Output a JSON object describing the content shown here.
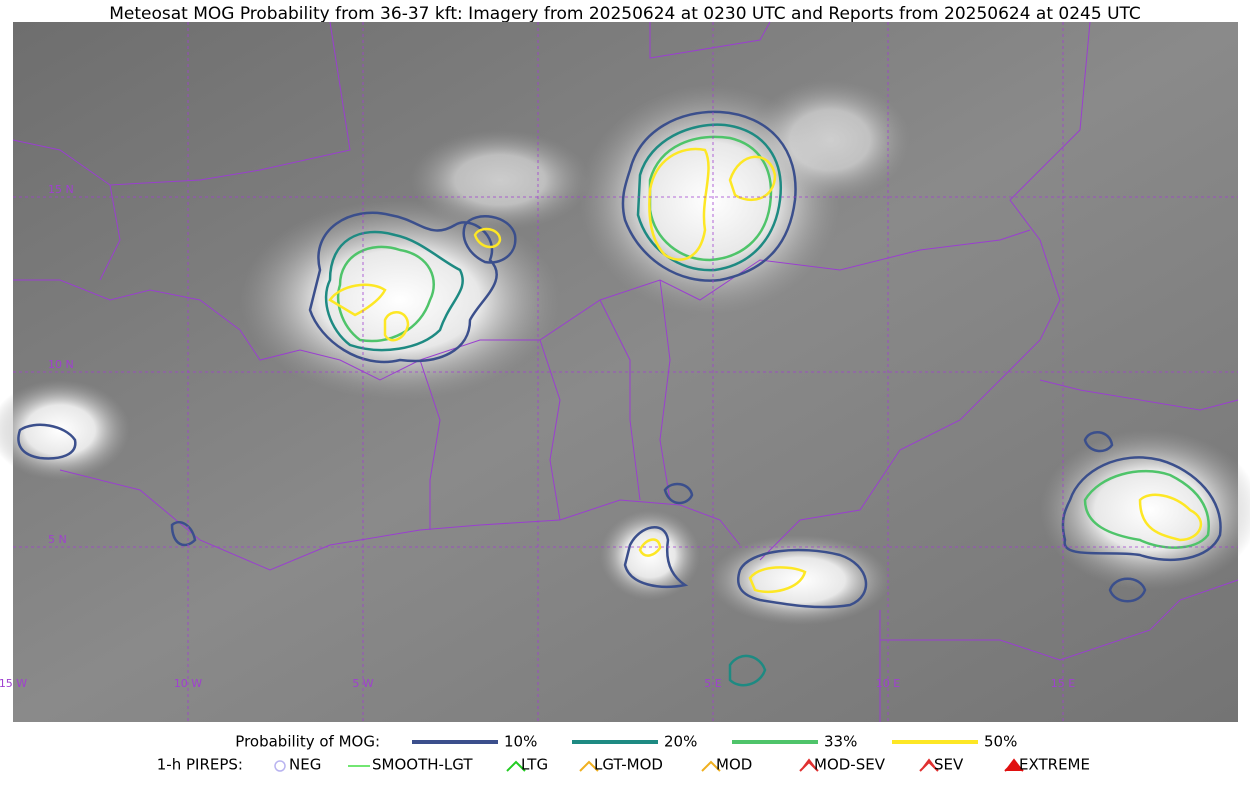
{
  "title": "Meteosat MOG Probability from 36-37 kft: Imagery from 20250624 at 0230 UTC and Reports from 20250624 at 0245 UTC",
  "map": {
    "lat_labels": [
      "15 N",
      "10 N",
      "5 N"
    ],
    "lon_labels": [
      "15 W",
      "10 W",
      "5 W",
      "5 E",
      "10 E",
      "15 E"
    ]
  },
  "legend": {
    "probability": {
      "label": "Probability of MOG:",
      "items": [
        {
          "label": "10%",
          "color": "#3b4f8c"
        },
        {
          "label": "20%",
          "color": "#1e8a82"
        },
        {
          "label": "33%",
          "color": "#4fc46a"
        },
        {
          "label": "50%",
          "color": "#fde725"
        }
      ]
    },
    "pireps": {
      "label": "1-h PIREPS:",
      "items": [
        {
          "label": "NEG",
          "color": "#b9b4f0"
        },
        {
          "label": "SMOOTH-LGT",
          "color": "#44dd44"
        },
        {
          "label": "LTG",
          "color": "#22cc22"
        },
        {
          "label": "LGT-MOD",
          "color": "#f0b020"
        },
        {
          "label": "MOD",
          "color": "#f0b020"
        },
        {
          "label": "MOD-SEV",
          "color": "#e03030"
        },
        {
          "label": "SEV",
          "color": "#e03030"
        },
        {
          "label": "EXTREME",
          "color": "#e01010"
        }
      ]
    }
  }
}
